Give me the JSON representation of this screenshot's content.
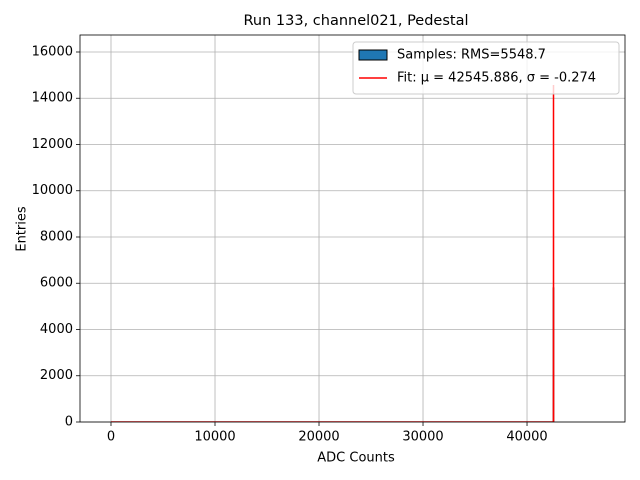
{
  "chart_data": {
    "type": "histogram",
    "title": "Run 133, channel021, Pedestal",
    "x_label": "ADC Counts",
    "y_label": "Entries",
    "xlim": [
      -2980,
      49420
    ],
    "ylim": [
      0,
      16735
    ],
    "xticks": [
      0,
      10000,
      20000,
      30000,
      40000
    ],
    "yticks": [
      0,
      2000,
      4000,
      6000,
      8000,
      10000,
      12000,
      14000,
      16000
    ],
    "grid": true,
    "legend": "upper right",
    "series": [
      {
        "name": "Samples: RMS=5548.7",
        "type": "histogram",
        "color": "#1f77b4",
        "edgecolor": "#000000",
        "bins": [
          0,
          42520,
          42560,
          42600
        ],
        "values": [
          0,
          5800,
          0
        ]
      },
      {
        "name": "Fit: μ = 42545.886, σ = -0.274",
        "type": "line",
        "color": "#ff0000",
        "x": [
          0,
          42540,
          42545.886,
          42552,
          42620
        ],
        "values": [
          0,
          0,
          14573,
          0,
          0
        ]
      }
    ]
  }
}
